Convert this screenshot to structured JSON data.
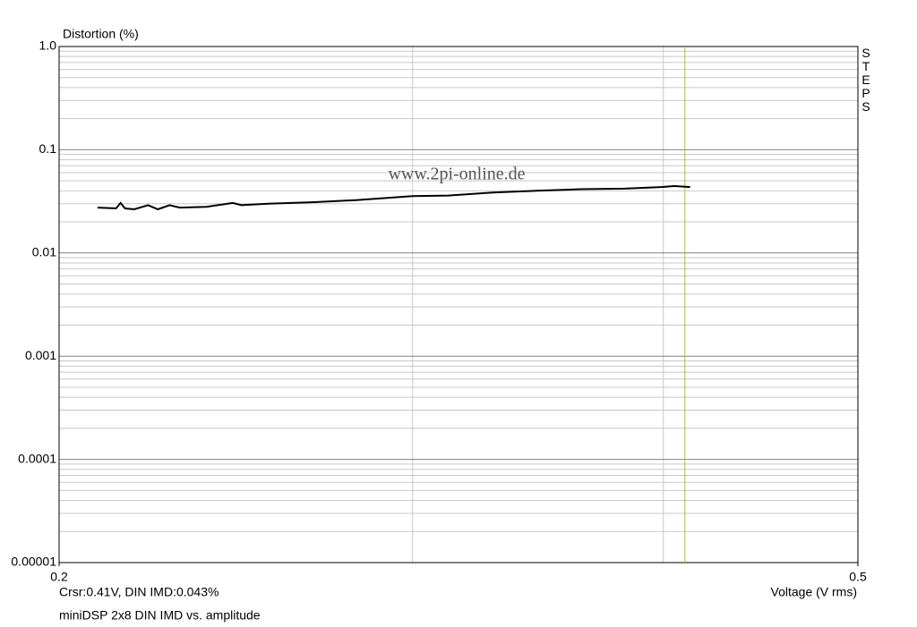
{
  "chart_data": {
    "type": "line",
    "title": "miniDSP 2x8 DIN IMD vs. amplitude",
    "y_label": "Distortion (%)",
    "x_label": "Voltage (V rms)",
    "side_label": "STEPS",
    "watermark": "www.2pi-online.de",
    "cursor_text": "Crsr:0.41V, DIN IMD:0.043%",
    "cursor_x": 0.41,
    "cursor_color": "#b8b830",
    "xlog": true,
    "ylog": true,
    "grid": true,
    "xlim": [
      0.2,
      0.5
    ],
    "xticks": [
      0.2,
      0.5
    ],
    "x_minor_grid": [
      0.3,
      0.4
    ],
    "ylim": [
      1e-05,
      1
    ],
    "yticks": [
      {
        "value": 1,
        "label": "1.0"
      },
      0.1,
      0.01,
      0.001,
      0.0001,
      1e-05
    ],
    "series": [
      {
        "name": "DIN IMD",
        "color": "#000000",
        "x": [
          0.209,
          0.2135,
          0.2146,
          0.2157,
          0.218,
          0.2215,
          0.224,
          0.227,
          0.2297,
          0.2368,
          0.2441,
          0.2465,
          0.2541,
          0.2673,
          0.2812,
          0.3,
          0.3126,
          0.3289,
          0.3459,
          0.3639,
          0.3827,
          0.399,
          0.405,
          0.4125
        ],
        "values": [
          0.0275,
          0.027,
          0.0305,
          0.027,
          0.0265,
          0.029,
          0.0265,
          0.029,
          0.0275,
          0.028,
          0.0305,
          0.029,
          0.03,
          0.031,
          0.0325,
          0.0355,
          0.036,
          0.0385,
          0.04,
          0.0415,
          0.042,
          0.0435,
          0.0445,
          0.0435
        ]
      }
    ]
  }
}
